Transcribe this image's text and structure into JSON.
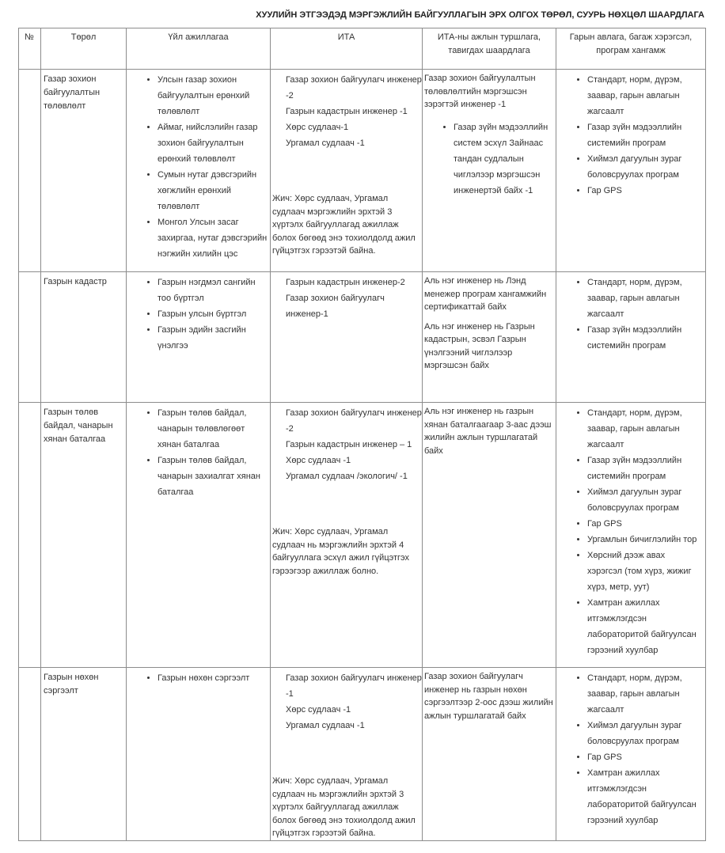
{
  "title": "ХУУЛИЙН ЭТГЭЭДЭД МЭРГЭЖЛИЙН БАЙГУУЛЛАГЫН ЭРХ ОЛГОХ ТӨРӨЛ, СУУРЬ НӨХЦӨЛ ШААРДЛАГА",
  "headers": [
    "№",
    "Төрөл",
    "Үйл ажиллагаа",
    "ИТА",
    "ИТА-ны ажлын туршлага, тавигдах шаардлага",
    "Гарын авлага, багаж хэрэгсэл, програм хангамж"
  ],
  "rows": [
    {
      "num": "",
      "type": "Газар зохион байгуулалтын төлөвлөлт",
      "activities": [
        "Улсын газар зохион байгуулалтын ерөнхий төлөвлөлт",
        "Аймаг, нийслэлийн газар зохион байгуулалтын ерөнхий төлөвлөлт",
        "Сумын нутаг дэвсгэрийн хөгжлийн ерөнхий төлөвлөлт",
        "Монгол Улсын засаг захиргаа, нутаг дэвсгэрийн нэгжийн хилийн цэс"
      ],
      "ita": [
        "Газар зохион байгуулагч инженер -2",
        "Газрын кадастрын инженер -1",
        "Хөрс судлаач-1",
        "Ургамал судлаач -1"
      ],
      "ita_note": "Жич: Хөрс судлаач, Ургамал судлаач мэргэжлийн эрхтэй 3 хүртэлх байгууллагад ажиллаж болох бөгөөд энэ тохиолдолд ажил гүйцэтгэх гэрээтэй байна.",
      "experience": [
        "Газар зохион байгуулалтын төлөвлөлтийн мэргэшсэн зэрэгтэй инженер -1"
      ],
      "experience_list": [
        "Газар зүйн мэдээллийн систем эсхүл Зайнаас тандан судлалын чиглэлээр мэргэшсэн инженертэй байх -1"
      ],
      "tools": [
        "Стандарт, норм, дүрэм, заавар, гарын авлагын жагсаалт",
        "Газар зүйн мэдээллийн системийн програм",
        "Хиймэл дагуулын зураг боловсруулах програм",
        "Гар GPS"
      ]
    },
    {
      "num": "",
      "type": "Газрын кадастр",
      "activities": [
        "Газрын нэгдмэл сангийн тоо бүртгэл",
        "Газрын улсын бүртгэл",
        "Газрын эдийн засгийн үнэлгээ"
      ],
      "ita": [
        "Газрын кадастрын инженер-2",
        "Газар зохион байгуулагч инженер-1"
      ],
      "ita_note": "",
      "experience": [
        "Аль нэг инженер нь Лэнд менежер програм хангамжийн сертификаттай байх",
        "Аль нэг инженер нь Газрын кадастрын, эсвэл Газрын үнэлгээний чиглэлээр мэргэшсэн байх"
      ],
      "experience_list": [],
      "tools": [
        "Стандарт, норм, дүрэм, заавар, гарын авлагын жагсаалт",
        "Газар зүйн мэдээллийн системийн програм"
      ]
    },
    {
      "num": "",
      "type": "Газрын төлөв байдал, чанарын хянан баталгаа",
      "activities": [
        "Газрын төлөв байдал, чанарын төлөвлөгөөт хянан баталгаа",
        "Газрын төлөв байдал, чанарын захиалгат хянан баталгаа"
      ],
      "ita": [
        "Газар зохион байгуулагч инженер -2",
        "Газрын кадастрын инженер – 1",
        "Хөрс судлаач -1",
        "Ургамал судлаач /экологич/ -1"
      ],
      "ita_note": "Жич: Хөрс судлаач, Ургамал судлаач нь мэргэжлийн эрхтэй 4 байгууллага эсхүл ажил гүйцэтгэх гэрээгээр ажиллаж болно.",
      "experience": [
        "Аль нэг инженер нь газрын хянан баталгаагаар 3-аас дээш жилийн ажлын туршлагатай байх"
      ],
      "experience_list": [],
      "tools": [
        "Стандарт, норм, дүрэм, заавар, гарын авлагын жагсаалт",
        "Газар зүйн мэдээллийн системийн програм",
        "Хиймэл дагуулын зураг боловсруулах програм",
        "Гар GPS",
        "Ургамлын бичиглэлийн тор",
        "Хөрсний дээж авах хэрэгсэл (том хүрз, жижиг хүрз, метр, уут)",
        "Хамтран ажиллах итгэмжлэгдсэн лабораторитой байгуулсан гэрээний хуулбар"
      ]
    },
    {
      "num": "",
      "type": "Газрын нөхөн сэргээлт",
      "activities": [
        "Газрын нөхөн сэргээлт"
      ],
      "ita": [
        "Газар зохион байгуулагч инженер -1",
        "Хөрс судлаач -1",
        "Ургамал судлаач -1"
      ],
      "ita_note": "Жич: Хөрс судлаач, Ургамал судлаач нь мэргэжлийн эрхтэй 3 хүртэлх байгууллагад ажиллаж болох бөгөөд энэ тохиолдолд ажил гүйцэтгэх гэрээтэй байна.",
      "experience": [
        "Газар зохион байгуулагч инженер нь газрын нөхөн сэргээлтээр 2-оос дээш жилийн ажлын туршлагатай байх"
      ],
      "experience_list": [],
      "tools": [
        "Стандарт, норм, дүрэм, заавар, гарын авлагын жагсаалт",
        "Хиймэл дагуулын зураг боловсруулах програм",
        "Гар GPS",
        "Хамтран ажиллах итгэмжлэгдсэн лабораторитой байгуулсан гэрээний хуулбар"
      ]
    }
  ]
}
